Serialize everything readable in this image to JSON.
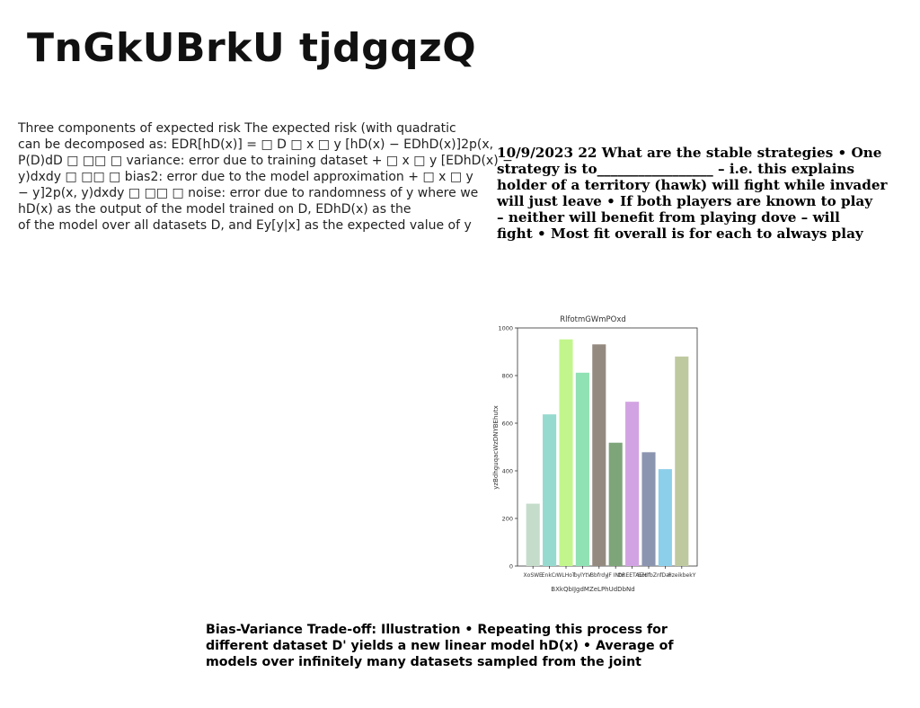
{
  "title": "TnGkUBrkU tjdgqzQ",
  "left_text": [
    "Three components of expected risk The expected risk (with quadratic",
    "can be decomposed as: EDR[hD(x)] = □ D □ x □ y [hD(x) − EDhD(x)]2p(x,",
    "P(D)dD □ □□ □ variance: error due to training dataset + □ x □ y [EDhD(x) −",
    "y)dxdy □ □□ □ bias2: error due to the model approximation + □ x □ y",
    "− y]2p(x, y)dxdy □ □□ □ noise: error due to randomness of y where we",
    "hD(x) as the output of the model trained on D, EDhD(x) as the",
    "of the model over all datasets D, and Ey[y|x] as the expected value of y"
  ],
  "right_text": [
    "10/9/2023 22 What are the stable strategies • One",
    "strategy is to_________________ – i.e. this explains",
    "holder of a territory (hawk) will fight while invader",
    "will just leave • If both players are known to play",
    "– neither will benefit from playing dove – will",
    "fight • Most fit overall is for each to always play"
  ],
  "bottom_text": [
    "Bias-Variance Trade-off: Illustration • Repeating this process for",
    "different dataset D' yields a new linear model hD(x) • Average of",
    "models over infinitely many datasets sampled from the joint"
  ],
  "chart_data": {
    "type": "bar",
    "title": "RlfotmGWmPOxd",
    "xlabel": "BXkQbIJgdMZeLPhUdDbNd",
    "ylabel": "yzBdhguqacWzDNYBEhutx",
    "ylim": [
      0,
      1000
    ],
    "yticks": [
      0,
      200,
      400,
      600,
      800,
      1000
    ],
    "grid": false,
    "categories": [
      "XoSWE",
      "EnkCr",
      "WLHoT",
      "bylYtV",
      "Bbfrdy",
      "JF INtx",
      "OREETAEH",
      "SZdfbZn",
      "fDal",
      "HzeikbekY"
    ],
    "values": [
      262,
      637,
      952,
      812,
      931,
      518,
      690,
      478,
      407,
      880
    ],
    "colors": [
      "#c6dccb",
      "#95d9cf",
      "#c2f58c",
      "#90e1b3",
      "#948a80",
      "#7ea57a",
      "#d2a3e3",
      "#8c95b0",
      "#8ccfea",
      "#bec99f"
    ]
  }
}
